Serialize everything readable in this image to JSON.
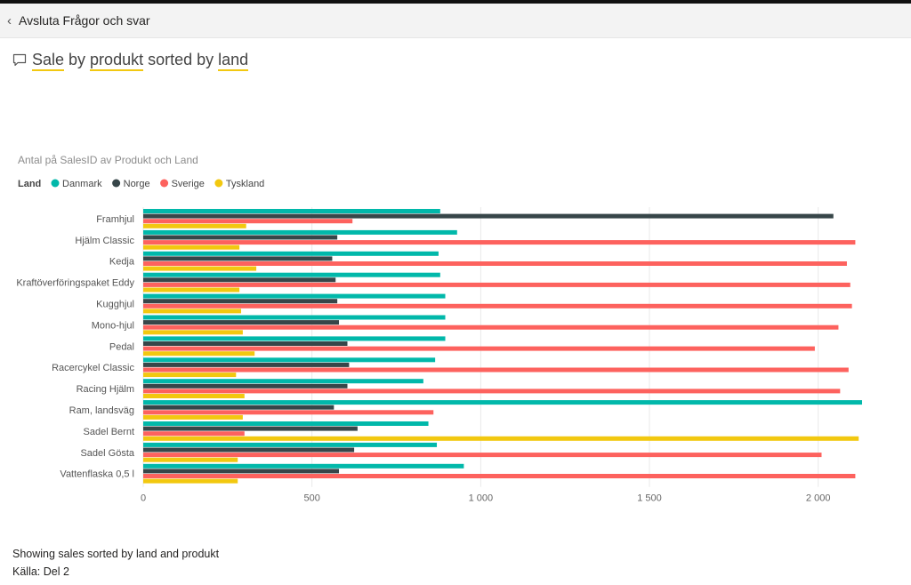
{
  "topbar": {
    "back_label": "Avsluta Frågor och svar"
  },
  "question": {
    "parts": [
      {
        "text": "Sale",
        "keyword": true
      },
      {
        "text": " by ",
        "keyword": false
      },
      {
        "text": "produkt",
        "keyword": true
      },
      {
        "text": " sorted by ",
        "keyword": false
      },
      {
        "text": "land",
        "keyword": true
      }
    ]
  },
  "chart_data": {
    "type": "bar",
    "orientation": "horizontal",
    "title": "Antal på SalesID av Produkt och Land",
    "legend_title": "Land",
    "legend_position": "top-left",
    "categories": [
      "Framhjul",
      "Hjälm Classic",
      "Kedja",
      "Kraftöverföringspaket Eddy",
      "Kugghjul",
      "Mono-hjul",
      "Pedal",
      "Racercykel Classic",
      "Racing Hjälm",
      "Ram, landsväg",
      "Sadel Bernt",
      "Sadel Gösta",
      "Vattenflaska 0,5 l"
    ],
    "series": [
      {
        "name": "Danmark",
        "color": "#01b8aa",
        "values": [
          880,
          930,
          875,
          880,
          895,
          895,
          895,
          865,
          830,
          2130,
          845,
          870,
          950
        ]
      },
      {
        "name": "Norge",
        "color": "#374649",
        "values": [
          2045,
          575,
          560,
          570,
          575,
          580,
          605,
          610,
          605,
          565,
          635,
          625,
          580
        ]
      },
      {
        "name": "Sverige",
        "color": "#fd625e",
        "values": [
          620,
          2110,
          2085,
          2095,
          2100,
          2060,
          1990,
          2090,
          2065,
          860,
          300,
          2010,
          2110
        ]
      },
      {
        "name": "Tyskland",
        "color": "#f2c80f",
        "values": [
          305,
          285,
          335,
          285,
          290,
          295,
          330,
          275,
          300,
          295,
          2120,
          280,
          280
        ]
      }
    ],
    "xlim": [
      0,
      2130
    ],
    "xticks": [
      0,
      500,
      1000,
      1500,
      2000
    ],
    "xtick_labels": [
      "0",
      "500",
      "1 000",
      "1 500",
      "2 000"
    ],
    "grid": true
  },
  "footer": {
    "description": "Showing sales sorted by land and produkt",
    "source": "Källa: Del 2"
  }
}
